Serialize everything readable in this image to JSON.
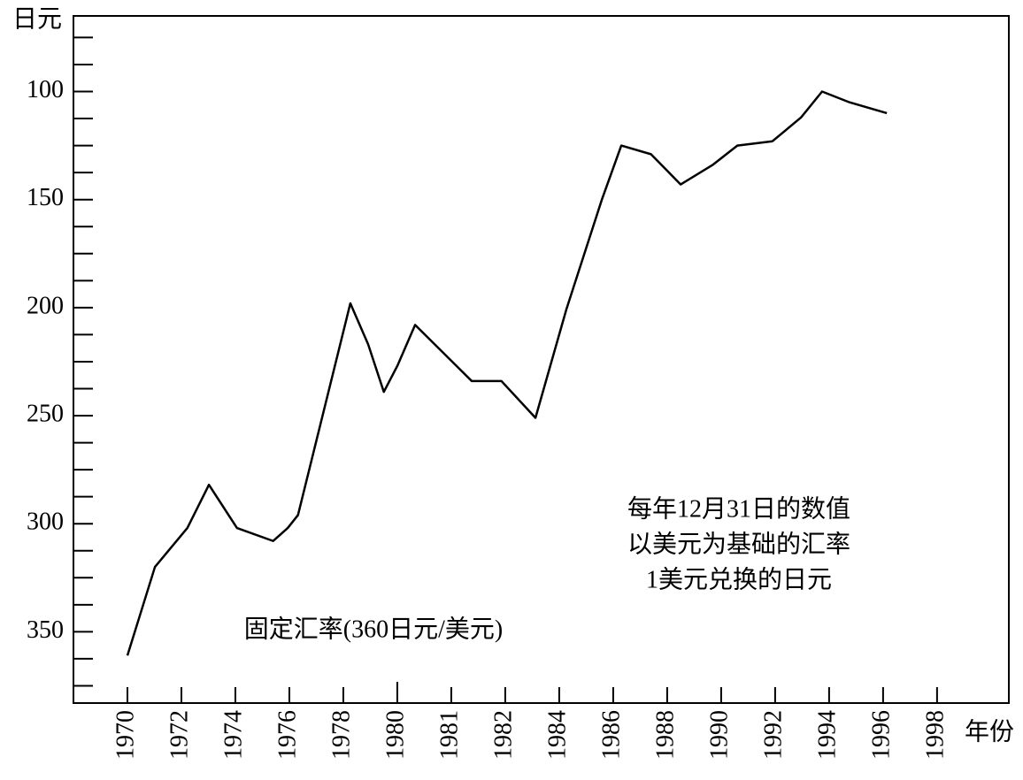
{
  "chart_data": {
    "type": "line",
    "y_label": "日元",
    "x_label": "年份",
    "annotations": [
      "每年12月31日的数值",
      "以美元为基础的汇率",
      "1美元兑换的日元",
      "固定汇率(360日元/美元)"
    ],
    "y_inverted": true,
    "ylim": [
      65,
      383
    ],
    "yticks": [
      100,
      150,
      200,
      250,
      300,
      350
    ],
    "yminor_ticks": [
      75,
      87.5,
      112.5,
      125,
      137.5,
      162.5,
      175,
      187.5,
      212.5,
      225,
      237.5,
      262.5,
      275,
      287.5,
      312.5,
      325,
      337.5,
      362.5,
      375
    ],
    "xlim": [
      -1,
      16.33
    ],
    "xticks": [
      {
        "value": 0,
        "label": "1970"
      },
      {
        "value": 1,
        "label": "1972"
      },
      {
        "value": 2,
        "label": "1974"
      },
      {
        "value": 3,
        "label": "1976"
      },
      {
        "value": 4,
        "label": "1978"
      },
      {
        "value": 5,
        "label": "1980"
      },
      {
        "value": 6,
        "label": "1981"
      },
      {
        "value": 7,
        "label": "1982"
      },
      {
        "value": 8,
        "label": "1984"
      },
      {
        "value": 9,
        "label": "1986"
      },
      {
        "value": 10,
        "label": "1988"
      },
      {
        "value": 11,
        "label": "1990"
      },
      {
        "value": 12,
        "label": "1992"
      },
      {
        "value": 13,
        "label": "1994"
      },
      {
        "value": 14,
        "label": "1996"
      },
      {
        "value": 15,
        "label": "1998"
      }
    ],
    "x": [
      0,
      0.51,
      1.11,
      1.51,
      2.03,
      2.7,
      2.97,
      3.16,
      4.13,
      4.46,
      4.75,
      5.0,
      5.33,
      6.38,
      6.93,
      7.56,
      8.13,
      8.79,
      9.15,
      9.7,
      10.25,
      10.84,
      11.3,
      11.95,
      12.48,
      12.87,
      13.38,
      14.07
    ],
    "series": [
      {
        "color": "#000000",
        "values": [
          361,
          320,
          302,
          282,
          302,
          308,
          302,
          296,
          198,
          217,
          239,
          227,
          208,
          234,
          234,
          251,
          201,
          150,
          125,
          129,
          143,
          134,
          125,
          123,
          112,
          100,
          105,
          110
        ]
      }
    ]
  }
}
